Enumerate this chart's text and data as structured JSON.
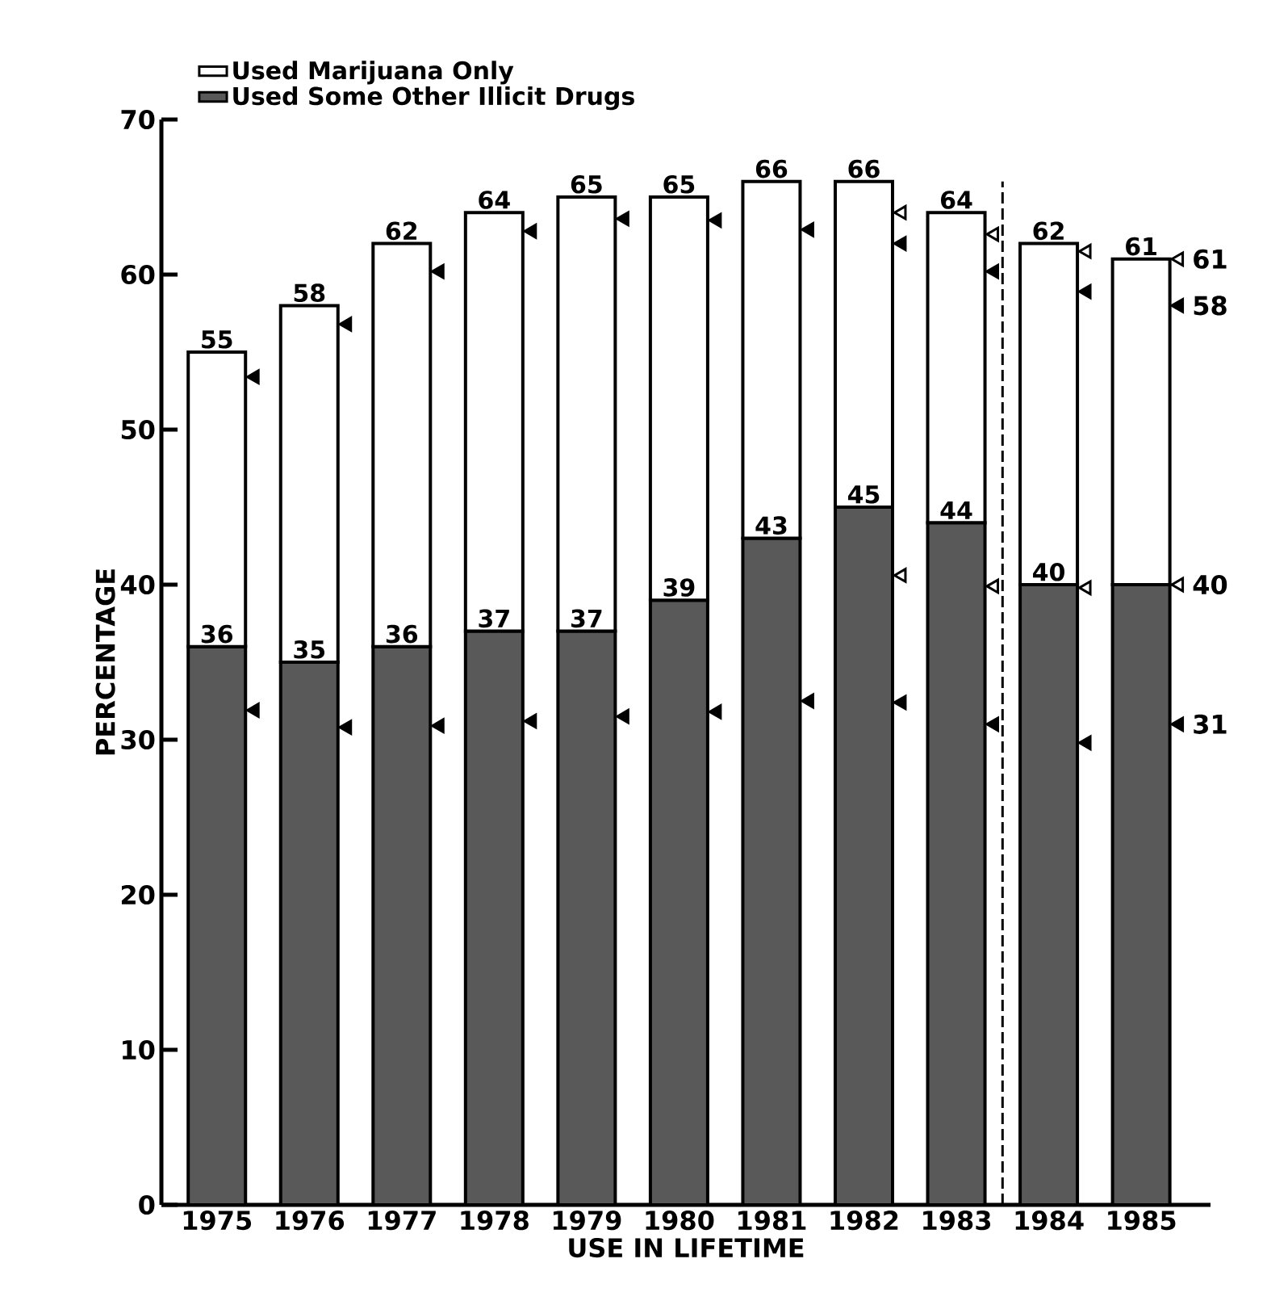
{
  "chart_data": {
    "type": "bar",
    "stacked": true,
    "categories": [
      "1975",
      "1976",
      "1977",
      "1978",
      "1979",
      "1980",
      "1981",
      "1982",
      "1983",
      "1984",
      "1985"
    ],
    "xlabel": "USE IN LIFETIME",
    "ylabel": "PERCENTAGE",
    "ylim": [
      0,
      70
    ],
    "yticks": [
      0,
      10,
      20,
      30,
      40,
      50,
      60,
      70
    ],
    "series": [
      {
        "name": "Used Some Other Illicit Drugs",
        "color": "#595959",
        "values": [
          36,
          35,
          36,
          37,
          37,
          39,
          43,
          45,
          44,
          40,
          40
        ],
        "value_labels": [
          "36",
          "35",
          "36",
          "37",
          "37",
          "39",
          "43",
          "45",
          "44",
          "40",
          null
        ]
      },
      {
        "name": "Used Marijuana Only",
        "color": "#ffffff",
        "values": [
          19,
          23,
          26,
          27,
          28,
          26,
          23,
          21,
          20,
          22,
          21
        ]
      },
      {
        "type": "scatter",
        "marker": "triangle",
        "color": "#000000",
        "values": [
          53.4,
          56.8,
          60.2,
          62.8,
          63.6,
          63.5,
          62.9,
          62,
          60.2,
          58.9,
          58
        ],
        "value_labels": [
          null,
          null,
          null,
          null,
          null,
          null,
          null,
          null,
          null,
          null,
          "58"
        ]
      },
      {
        "type": "scatter",
        "marker": "triangle",
        "color": "#000000",
        "values": [
          31.9,
          30.8,
          30.9,
          31.2,
          31.5,
          31.8,
          32.5,
          32.4,
          31,
          29.8,
          31
        ],
        "value_labels": [
          null,
          null,
          null,
          null,
          null,
          null,
          null,
          null,
          null,
          null,
          "31"
        ]
      },
      {
        "type": "scatter",
        "marker": "triangle",
        "color": "#ffffff",
        "values": [
          null,
          null,
          null,
          null,
          null,
          null,
          null,
          64,
          62.6,
          61.5,
          61
        ],
        "value_labels": [
          null,
          null,
          null,
          null,
          null,
          null,
          null,
          null,
          null,
          null,
          "61"
        ]
      },
      {
        "type": "scatter",
        "marker": "triangle",
        "color": "#ffffff",
        "values": [
          null,
          null,
          null,
          null,
          null,
          null,
          null,
          40.6,
          39.9,
          39.8,
          40
        ],
        "value_labels": [
          null,
          null,
          null,
          null,
          null,
          null,
          null,
          null,
          null,
          null,
          "40"
        ]
      }
    ],
    "totals": [
      "55",
      "58",
      "62",
      "64",
      "65",
      "65",
      "66",
      "66",
      "64",
      "62",
      "61"
    ],
    "legend": "top left"
  }
}
